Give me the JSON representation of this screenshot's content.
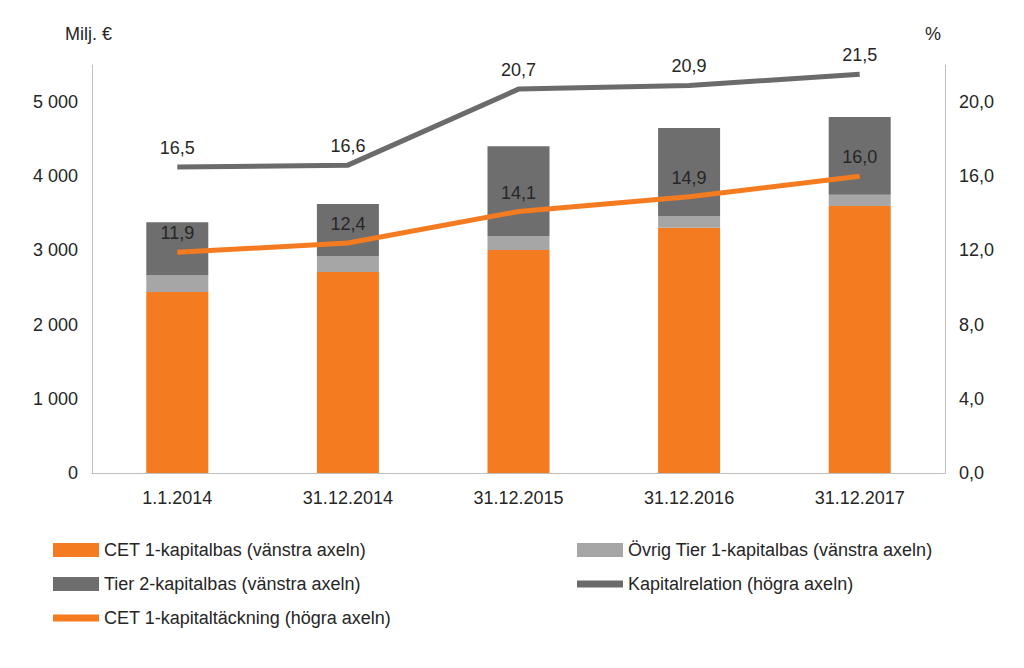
{
  "chart_data": {
    "type": "bar",
    "stacked": true,
    "grid": false,
    "legend": "bottom",
    "y_label": "Milj. €",
    "y2_label": "%",
    "categories": [
      "1.1.2014",
      "31.12.2014",
      "31.12.2015",
      "31.12.2016",
      "31.12.2017"
    ],
    "ylim": [
      0,
      5500
    ],
    "yticks": [
      0,
      {
        "value": 1000,
        "label": "1 000"
      },
      {
        "value": 2000,
        "label": "2 000"
      },
      {
        "value": 3000,
        "label": "3 000"
      },
      {
        "value": 4000,
        "label": "4 000"
      },
      {
        "value": 5000,
        "label": "5 000"
      }
    ],
    "y2lim": [
      0,
      22
    ],
    "y2ticks": [
      {
        "value": 0,
        "label": "0,0"
      },
      {
        "value": 4,
        "label": "4,0"
      },
      {
        "value": 8,
        "label": "8,0"
      },
      {
        "value": 12,
        "label": "12,0"
      },
      {
        "value": 16,
        "label": "16,0"
      },
      {
        "value": 20,
        "label": "20,0"
      }
    ],
    "series": [
      {
        "name": "CET 1-kapitalbas (vänstra axeln)",
        "type": "bar",
        "color": "#f47b20",
        "values": [
          2440,
          2710,
          3005,
          3305,
          3600
        ]
      },
      {
        "name": "Övrig Tier 1-kapitalbas (vänstra axeln)",
        "type": "bar",
        "color": "#a6a6a6",
        "values": [
          230,
          215,
          190,
          160,
          150
        ]
      },
      {
        "name": "Tier 2-kapitalbas (vänstra axeln)",
        "type": "bar",
        "color": "#6e6e6e",
        "values": [
          710,
          700,
          1210,
          1185,
          1050
        ]
      },
      {
        "name": "Kapitalrelation (högra axeln)",
        "type": "line",
        "axis": "y2",
        "color": "#6b6b6b",
        "data_labels": true,
        "values": [
          16.5,
          16.6,
          20.7,
          20.9,
          21.5
        ],
        "value_labels": [
          "16,5",
          "16,6",
          "20,7",
          "20,9",
          "21,5"
        ]
      },
      {
        "name": "CET 1-kapitaltäckning (högra axeln)",
        "type": "line",
        "axis": "y2",
        "color": "#f47b20",
        "data_labels": true,
        "values": [
          11.9,
          12.4,
          14.1,
          14.9,
          16.0
        ],
        "value_labels": [
          "11,9",
          "12,4",
          "14,1",
          "14,9",
          "16,0"
        ]
      }
    ]
  }
}
